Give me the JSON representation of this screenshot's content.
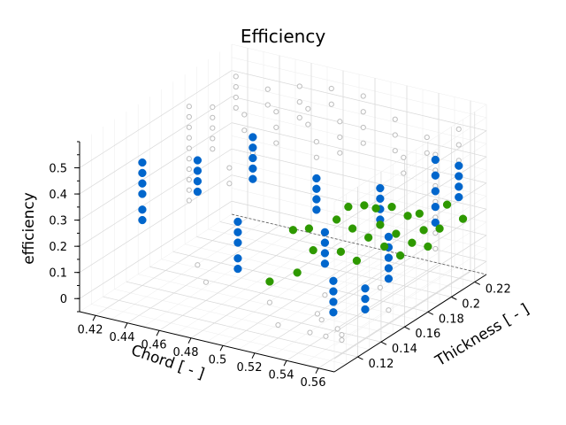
{
  "chart_data": {
    "type": "scatter",
    "title": "Efficiency",
    "xlabel": "Chord [ - ]",
    "ylabel": "Thickness [ - ]",
    "zlabel": "efficiency",
    "xlim": [
      0.41,
      0.57
    ],
    "ylim": [
      0.1,
      0.23
    ],
    "zlim": [
      -0.05,
      0.6
    ],
    "x_ticks": [
      "0.42",
      "0.44",
      "0.46",
      "0.48",
      "0.5",
      "0.52",
      "0.54",
      "0.56"
    ],
    "y_ticks": [
      "0.12",
      "0.14",
      "0.16",
      "0.18",
      "0.2",
      "0.22"
    ],
    "z_ticks": [
      "0",
      "0.1",
      "0.2",
      "0.3",
      "0.4",
      "0.5"
    ],
    "grid": true,
    "colors": {
      "background": "#bdbdbd",
      "highlight": "#0066cc",
      "green": "#2e9900"
    },
    "series": [
      {
        "style": "open",
        "color": "#bdbdbd",
        "points": [
          [
            0.42,
            0.22,
            0.52
          ],
          [
            0.42,
            0.22,
            0.48
          ],
          [
            0.42,
            0.22,
            0.44
          ],
          [
            0.42,
            0.22,
            0.4
          ],
          [
            0.42,
            0.2,
            0.46
          ],
          [
            0.42,
            0.2,
            0.42
          ],
          [
            0.42,
            0.2,
            0.38
          ],
          [
            0.42,
            0.2,
            0.34
          ],
          [
            0.42,
            0.2,
            0.3
          ],
          [
            0.42,
            0.18,
            0.52
          ],
          [
            0.42,
            0.18,
            0.48
          ],
          [
            0.42,
            0.18,
            0.44
          ],
          [
            0.42,
            0.18,
            0.4
          ],
          [
            0.42,
            0.18,
            0.36
          ],
          [
            0.42,
            0.18,
            0.32
          ],
          [
            0.42,
            0.18,
            0.28
          ],
          [
            0.42,
            0.18,
            0.24
          ],
          [
            0.42,
            0.18,
            0.2
          ],
          [
            0.42,
            0.18,
            0.16
          ],
          [
            0.44,
            0.22,
            0.5
          ],
          [
            0.44,
            0.22,
            0.44
          ],
          [
            0.44,
            0.2,
            0.46
          ],
          [
            0.44,
            0.2,
            0.4
          ],
          [
            0.46,
            0.22,
            0.54
          ],
          [
            0.46,
            0.22,
            0.48
          ],
          [
            0.46,
            0.22,
            0.42
          ],
          [
            0.46,
            0.2,
            0.5
          ],
          [
            0.46,
            0.2,
            0.44
          ],
          [
            0.46,
            0.2,
            0.38
          ],
          [
            0.46,
            0.18,
            0.46
          ],
          [
            0.46,
            0.18,
            0.4
          ],
          [
            0.46,
            0.18,
            0.34
          ],
          [
            0.46,
            0.16,
            0.4
          ],
          [
            0.46,
            0.16,
            0.34
          ],
          [
            0.48,
            0.22,
            0.56
          ],
          [
            0.48,
            0.22,
            0.5
          ],
          [
            0.48,
            0.2,
            0.54
          ],
          [
            0.48,
            0.2,
            0.48
          ],
          [
            0.5,
            0.22,
            0.56
          ],
          [
            0.5,
            0.22,
            0.5
          ],
          [
            0.5,
            0.22,
            0.44
          ],
          [
            0.5,
            0.22,
            0.38
          ],
          [
            0.5,
            0.2,
            0.52
          ],
          [
            0.5,
            0.2,
            0.46
          ],
          [
            0.5,
            0.2,
            0.4
          ],
          [
            0.5,
            0.18,
            0.5
          ],
          [
            0.5,
            0.18,
            0.44
          ],
          [
            0.52,
            0.22,
            0.5
          ],
          [
            0.52,
            0.22,
            0.44
          ],
          [
            0.52,
            0.22,
            0.38
          ],
          [
            0.54,
            0.22,
            0.46
          ],
          [
            0.54,
            0.22,
            0.4
          ],
          [
            0.54,
            0.2,
            0.44
          ],
          [
            0.54,
            0.2,
            0.38
          ],
          [
            0.56,
            0.22,
            0.52
          ],
          [
            0.56,
            0.22,
            0.46
          ],
          [
            0.56,
            0.22,
            0.4
          ],
          [
            0.56,
            0.2,
            0.48
          ],
          [
            0.56,
            0.2,
            0.42
          ],
          [
            0.56,
            0.2,
            0.36
          ],
          [
            0.56,
            0.2,
            0.3
          ],
          [
            0.56,
            0.2,
            0.24
          ],
          [
            0.56,
            0.2,
            0.18
          ],
          [
            0.56,
            0.2,
            0.12
          ],
          [
            0.44,
            0.16,
            0.0
          ],
          [
            0.46,
            0.14,
            0.02
          ],
          [
            0.5,
            0.14,
            0.0
          ],
          [
            0.52,
            0.12,
            0.0
          ],
          [
            0.54,
            0.12,
            0.0
          ],
          [
            0.54,
            0.13,
            0.02
          ],
          [
            0.55,
            0.12,
            0.0
          ],
          [
            0.55,
            0.13,
            0.0
          ],
          [
            0.56,
            0.12,
            0.0
          ],
          [
            0.56,
            0.12,
            0.02
          ],
          [
            0.53,
            0.14,
            0.0
          ],
          [
            0.52,
            0.16,
            0.0
          ],
          [
            0.56,
            0.16,
            0.0
          ],
          [
            0.54,
            0.18,
            0.0
          ]
        ]
      },
      {
        "style": "filled",
        "color": "#0066cc",
        "points": [
          [
            0.42,
            0.14,
            0.42
          ],
          [
            0.42,
            0.14,
            0.38
          ],
          [
            0.42,
            0.14,
            0.34
          ],
          [
            0.42,
            0.14,
            0.3
          ],
          [
            0.42,
            0.14,
            0.24
          ],
          [
            0.42,
            0.14,
            0.2
          ],
          [
            0.44,
            0.16,
            0.4
          ],
          [
            0.44,
            0.16,
            0.36
          ],
          [
            0.44,
            0.16,
            0.32
          ],
          [
            0.44,
            0.16,
            0.28
          ],
          [
            0.46,
            0.18,
            0.46
          ],
          [
            0.46,
            0.18,
            0.42
          ],
          [
            0.46,
            0.18,
            0.38
          ],
          [
            0.46,
            0.18,
            0.34
          ],
          [
            0.46,
            0.18,
            0.3
          ],
          [
            0.48,
            0.14,
            0.28
          ],
          [
            0.48,
            0.14,
            0.24
          ],
          [
            0.48,
            0.14,
            0.2
          ],
          [
            0.48,
            0.14,
            0.14
          ],
          [
            0.48,
            0.14,
            0.1
          ],
          [
            0.5,
            0.18,
            0.36
          ],
          [
            0.5,
            0.18,
            0.32
          ],
          [
            0.5,
            0.18,
            0.28
          ],
          [
            0.5,
            0.18,
            0.24
          ],
          [
            0.52,
            0.16,
            0.24
          ],
          [
            0.52,
            0.16,
            0.2
          ],
          [
            0.52,
            0.16,
            0.16
          ],
          [
            0.52,
            0.16,
            0.12
          ],
          [
            0.54,
            0.18,
            0.38
          ],
          [
            0.54,
            0.18,
            0.34
          ],
          [
            0.54,
            0.18,
            0.3
          ],
          [
            0.54,
            0.18,
            0.26
          ],
          [
            0.54,
            0.14,
            0.14
          ],
          [
            0.54,
            0.14,
            0.1
          ],
          [
            0.54,
            0.14,
            0.06
          ],
          [
            0.54,
            0.14,
            0.02
          ],
          [
            0.56,
            0.16,
            0.28
          ],
          [
            0.56,
            0.16,
            0.24
          ],
          [
            0.56,
            0.16,
            0.2
          ],
          [
            0.56,
            0.16,
            0.16
          ],
          [
            0.56,
            0.16,
            0.12
          ],
          [
            0.56,
            0.14,
            0.14
          ],
          [
            0.56,
            0.14,
            0.1
          ],
          [
            0.56,
            0.14,
            0.06
          ],
          [
            0.56,
            0.2,
            0.46
          ],
          [
            0.56,
            0.2,
            0.4
          ],
          [
            0.56,
            0.2,
            0.34
          ],
          [
            0.56,
            0.2,
            0.28
          ],
          [
            0.56,
            0.2,
            0.22
          ],
          [
            0.56,
            0.22,
            0.38
          ],
          [
            0.56,
            0.22,
            0.34
          ],
          [
            0.56,
            0.22,
            0.3
          ],
          [
            0.56,
            0.22,
            0.26
          ]
        ]
      },
      {
        "style": "filled",
        "color": "#2e9900",
        "points": [
          [
            0.5,
            0.16,
            0.22
          ],
          [
            0.51,
            0.16,
            0.24
          ],
          [
            0.52,
            0.17,
            0.26
          ],
          [
            0.52,
            0.18,
            0.28
          ],
          [
            0.53,
            0.17,
            0.24
          ],
          [
            0.53,
            0.18,
            0.3
          ],
          [
            0.53,
            0.19,
            0.26
          ],
          [
            0.54,
            0.17,
            0.22
          ],
          [
            0.54,
            0.18,
            0.24
          ],
          [
            0.54,
            0.19,
            0.28
          ],
          [
            0.55,
            0.17,
            0.2
          ],
          [
            0.55,
            0.18,
            0.22
          ],
          [
            0.55,
            0.19,
            0.26
          ],
          [
            0.55,
            0.2,
            0.24
          ],
          [
            0.56,
            0.18,
            0.2
          ],
          [
            0.56,
            0.19,
            0.22
          ],
          [
            0.56,
            0.17,
            0.18
          ],
          [
            0.52,
            0.15,
            0.2
          ],
          [
            0.53,
            0.16,
            0.18
          ],
          [
            0.54,
            0.16,
            0.16
          ],
          [
            0.5,
            0.14,
            0.08
          ],
          [
            0.51,
            0.15,
            0.1
          ],
          [
            0.56,
            0.21,
            0.26
          ],
          [
            0.57,
            0.19,
            0.24
          ],
          [
            0.57,
            0.18,
            0.2
          ],
          [
            0.57,
            0.21,
            0.22
          ]
        ]
      }
    ]
  }
}
